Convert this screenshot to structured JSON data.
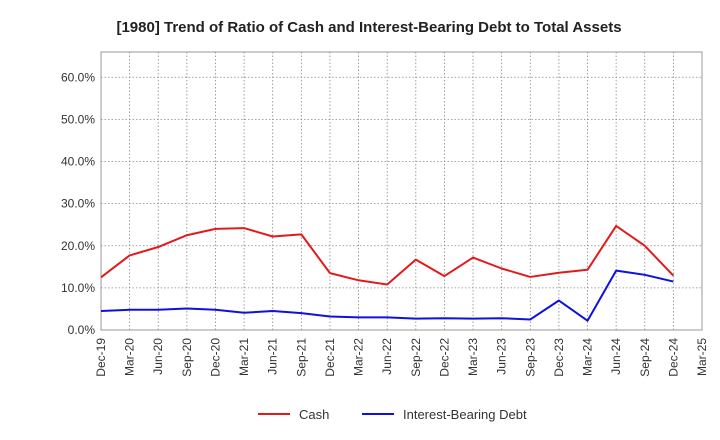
{
  "chart_data": {
    "type": "line",
    "title": "[1980]  Trend of Ratio of Cash and Interest-Bearing Debt to Total Assets",
    "xlabel": "",
    "ylabel": "",
    "ylim": [
      0,
      66
    ],
    "yticks": [
      0,
      10,
      20,
      30,
      40,
      50,
      60
    ],
    "ytick_labels": [
      "0.0%",
      "10.0%",
      "20.0%",
      "30.0%",
      "40.0%",
      "50.0%",
      "60.0%"
    ],
    "x_tick_labels": [
      "Dec-19",
      "Mar-20",
      "Jun-20",
      "Sep-20",
      "Dec-20",
      "Mar-21",
      "Jun-21",
      "Sep-21",
      "Dec-21",
      "Mar-22",
      "Jun-22",
      "Sep-22",
      "Dec-22",
      "Mar-23",
      "Jun-23",
      "Sep-23",
      "Dec-23",
      "Mar-24",
      "Jun-24",
      "Sep-24",
      "Dec-24",
      "Mar-25"
    ],
    "grid": true,
    "legend_position": "bottom",
    "series": [
      {
        "name": "Cash",
        "color": "#e31a1c",
        "x": [
          "Dec-19",
          "Mar-20",
          "Jun-20",
          "Sep-20",
          "Dec-20",
          "Mar-21",
          "Jun-21",
          "Sep-21",
          "Dec-21",
          "Mar-22",
          "Jun-22",
          "Sep-22",
          "Dec-22",
          "Mar-23",
          "Jun-23",
          "Sep-23",
          "Dec-23",
          "Mar-24",
          "Jun-24",
          "Sep-24",
          "Dec-24"
        ],
        "values": [
          12.5,
          17.7,
          19.7,
          22.5,
          24.0,
          24.2,
          22.2,
          22.7,
          13.5,
          11.8,
          10.8,
          16.7,
          12.8,
          17.2,
          14.6,
          12.6,
          13.6,
          14.3,
          24.7,
          20.0,
          12.9
        ]
      },
      {
        "name": "Interest-Bearing Debt",
        "color": "#1010e0",
        "x": [
          "Dec-19",
          "Mar-20",
          "Jun-20",
          "Sep-20",
          "Dec-20",
          "Mar-21",
          "Jun-21",
          "Sep-21",
          "Dec-21",
          "Mar-22",
          "Jun-22",
          "Sep-22",
          "Dec-22",
          "Mar-23",
          "Jun-23",
          "Sep-23",
          "Dec-23",
          "Mar-24",
          "Jun-24",
          "Sep-24",
          "Dec-24"
        ],
        "values": [
          4.5,
          4.8,
          4.8,
          5.1,
          4.8,
          4.1,
          4.5,
          4.0,
          3.2,
          3.0,
          3.0,
          2.7,
          2.8,
          2.7,
          2.8,
          2.5,
          7.0,
          2.2,
          14.1,
          13.1,
          11.5
        ]
      }
    ]
  }
}
